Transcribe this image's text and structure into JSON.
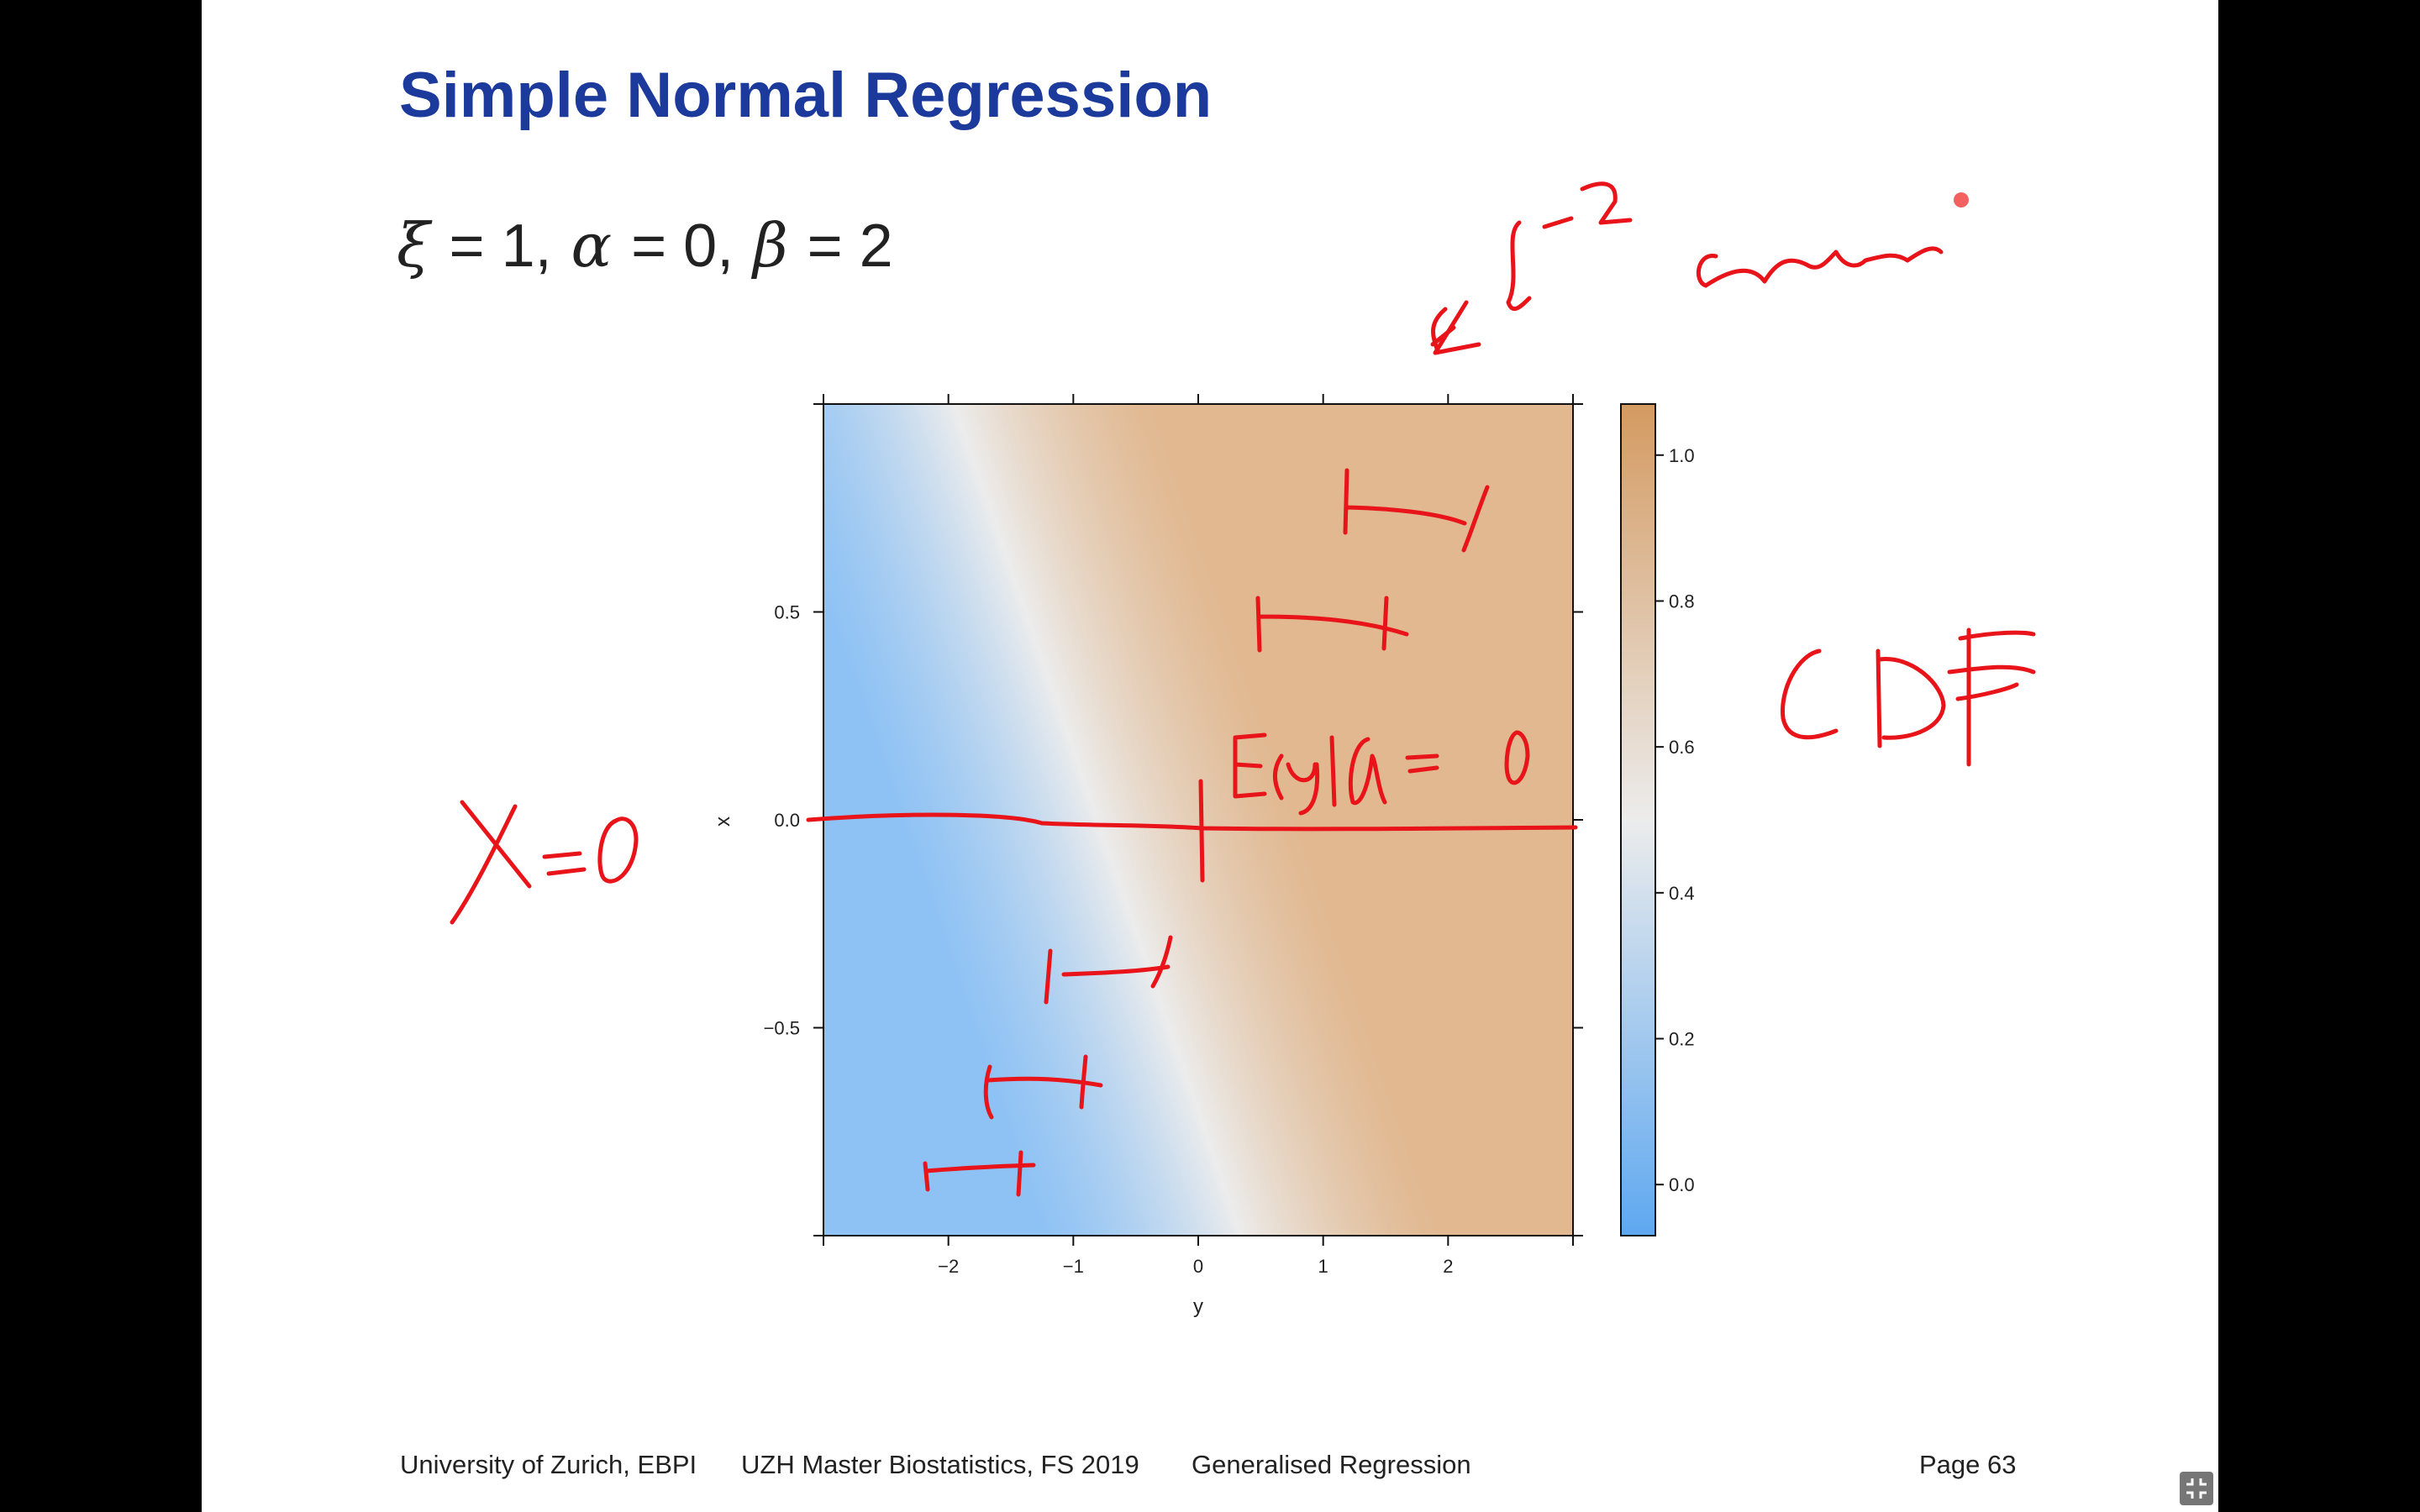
{
  "slide": {
    "title": "Simple Normal Regression",
    "formula": {
      "xi_symbol": "ξ",
      "xi_value": "= 1,",
      "alpha_symbol": "α",
      "alpha_value": "= 0,",
      "beta_symbol": "β",
      "beta_value": "= 2"
    },
    "footer": {
      "institution": "University of Zurich, EBPI",
      "course": "UZH Master Biostatistics, FS 2019",
      "topic": "Generalised Regression",
      "page": "Page 63"
    }
  },
  "chart_data": {
    "type": "heatmap",
    "xlabel": "y",
    "ylabel": "x",
    "x_ticks": [
      "−2",
      "−1",
      "0",
      "1",
      "2"
    ],
    "y_ticks": [
      "0.5",
      "0.0",
      "−0.5"
    ],
    "colorbar_ticks": [
      "1.0",
      "0.8",
      "0.6",
      "0.4",
      "0.2",
      "0.0"
    ],
    "xlim": [
      -3,
      3
    ],
    "ylim": [
      -1,
      1
    ],
    "colorbar_range": [
      0,
      1
    ],
    "colors": {
      "low": "#5ea8f0",
      "mid": "#ececec",
      "high": "#d49a61"
    }
  },
  "annotations": {
    "left_label": "X=0",
    "right_label": "CDF",
    "center_label": "E(y|0)=0",
    "top_label": "constant"
  },
  "colors": {
    "title": "#1b3a9c",
    "ink": "#e8141a"
  }
}
